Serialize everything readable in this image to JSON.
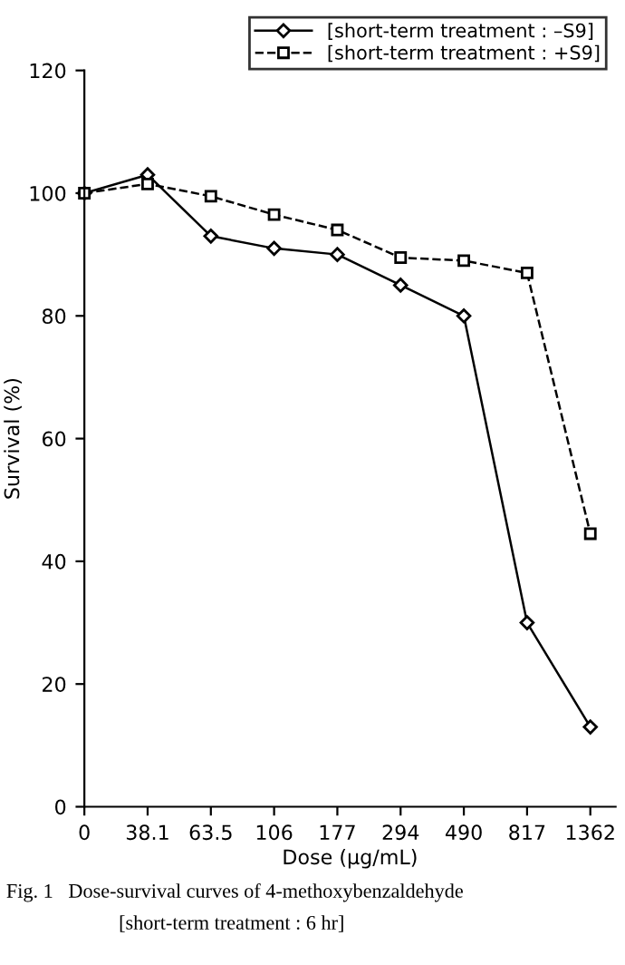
{
  "chart_data": {
    "type": "line",
    "xlabel": "Dose (μg/mL)",
    "ylabel": "Survival (%)",
    "categories": [
      "0",
      "38.1",
      "63.5",
      "106",
      "177",
      "294",
      "490",
      "817",
      "1362"
    ],
    "series": [
      {
        "name": "[short-term treatment : –S9]",
        "color": "#000000",
        "marker": "diamond",
        "line_style": "solid",
        "values": [
          100,
          103,
          93,
          91,
          90,
          85,
          80,
          30,
          13
        ]
      },
      {
        "name": "[short-term treatment : +S9]",
        "color": "#000000",
        "marker": "square",
        "line_style": "dashed",
        "values": [
          100,
          101.5,
          99.5,
          96.5,
          94,
          89.5,
          89,
          87,
          44.5
        ]
      }
    ],
    "ylim": [
      0,
      120
    ],
    "yticks": [
      0,
      20,
      40,
      60,
      80,
      100,
      120
    ],
    "grid": false,
    "legend": "top right",
    "annotations": [
      "Fig. 1   Dose-survival curves of 4-methoxybenzaldehyde",
      "[short-term treatment : 6 hr]"
    ]
  }
}
